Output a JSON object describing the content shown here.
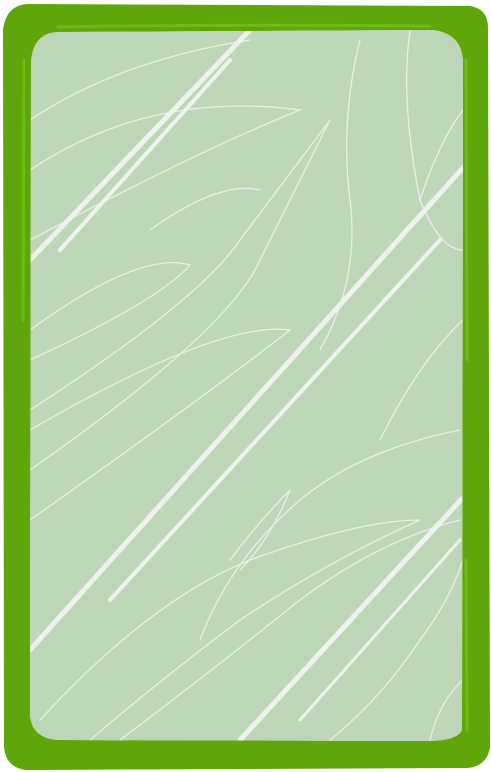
{
  "card": {
    "kind": "blank-card-frame",
    "border_color": "#5ea60a",
    "border_highlight_color": "#6cbd12",
    "face_color": "#bdd6b8",
    "grain_line_color": "#e9f0e7",
    "streak_color": "#eff3ee",
    "text": ""
  }
}
